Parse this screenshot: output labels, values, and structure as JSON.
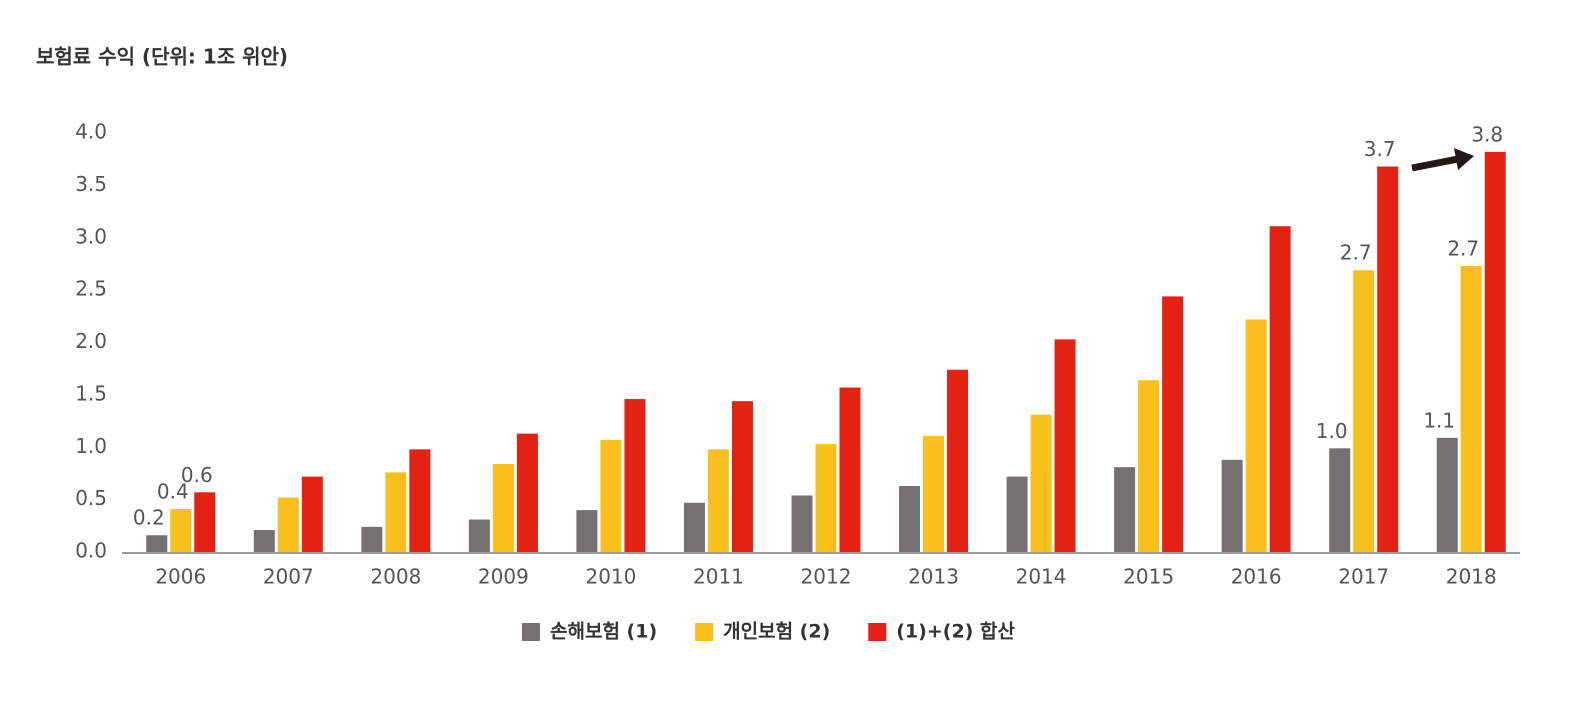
{
  "chart_data": {
    "type": "bar",
    "title": "보험료 수익 (단위: 1조 위안)",
    "categories": [
      "2006",
      "2007",
      "2008",
      "2009",
      "2010",
      "2011",
      "2012",
      "2013",
      "2014",
      "2015",
      "2016",
      "2017",
      "2018"
    ],
    "series": [
      {
        "name": "손해보험 (1)",
        "color": "#767171",
        "values": [
          0.16,
          0.21,
          0.24,
          0.31,
          0.4,
          0.47,
          0.54,
          0.63,
          0.72,
          0.81,
          0.88,
          0.99,
          1.09
        ],
        "value_labels": [
          "0.2",
          null,
          null,
          null,
          null,
          null,
          null,
          null,
          null,
          null,
          null,
          "1.0",
          "1.1"
        ]
      },
      {
        "name": "개인보험 (2)",
        "color": "#f9c01c",
        "values": [
          0.41,
          0.52,
          0.76,
          0.84,
          1.07,
          0.98,
          1.03,
          1.11,
          1.31,
          1.64,
          2.22,
          2.69,
          2.73
        ],
        "value_labels": [
          "0.4",
          null,
          null,
          null,
          null,
          null,
          null,
          null,
          null,
          null,
          null,
          "2.7",
          "2.7"
        ]
      },
      {
        "name": "(1)+(2) 합산",
        "color": "#e32214",
        "values": [
          0.57,
          0.72,
          0.98,
          1.13,
          1.46,
          1.44,
          1.57,
          1.74,
          2.03,
          2.44,
          3.11,
          3.68,
          3.82
        ],
        "value_labels": [
          "0.6",
          null,
          null,
          null,
          null,
          null,
          null,
          null,
          null,
          null,
          null,
          "3.7",
          "3.8"
        ]
      }
    ],
    "ylim": [
      0,
      4
    ],
    "yticks": [
      {
        "value": 0,
        "label": "0.0"
      },
      0.5,
      {
        "value": 1,
        "label": "1.0"
      },
      1.5,
      {
        "value": 2,
        "label": "2.0"
      },
      2.5,
      {
        "value": 3,
        "label": "3.0"
      },
      3.5,
      {
        "value": 4,
        "label": "4.0"
      }
    ],
    "grid": false,
    "legend": "bottom"
  }
}
